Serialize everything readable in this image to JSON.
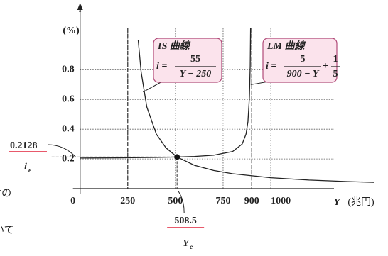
{
  "chart_data": {
    "type": "line",
    "xlabel": "Y",
    "xunit": "(兆円)",
    "ylabel": "i",
    "yunit": "(%)",
    "xlim": [
      -10,
      1540
    ],
    "ylim": [
      0,
      1.05
    ],
    "xticks": [
      0,
      250,
      500,
      750,
      900,
      1000
    ],
    "yticks": [
      0.2,
      0.4,
      0.6,
      0.8
    ],
    "grid": true,
    "asymptotes": [
      250,
      900
    ],
    "series": [
      {
        "name": "IS 曲線",
        "color": "#222222",
        "formula": {
          "lhs": "i =",
          "numerator": "55",
          "denominator": "Y − 250"
        },
        "x": [
          305,
          320,
          350,
          400,
          450,
          508.5,
          600,
          700,
          800,
          1000,
          1200,
          1400,
          1540
        ],
        "values": [
          1.0,
          0.786,
          0.55,
          0.367,
          0.275,
          0.2128,
          0.157,
          0.122,
          0.1,
          0.0733,
          0.0579,
          0.0478,
          0.0426
        ]
      },
      {
        "name": "LM 曲線",
        "color": "#222222",
        "formula": {
          "lhs": "i =",
          "numerator": "5",
          "denominator": "900 − Y",
          "plus": "+",
          "numerator2": "1",
          "denominator2": "5"
        },
        "x": [
          0,
          200,
          400,
          508.5,
          600,
          700,
          800,
          850,
          870,
          880,
          888,
          892,
          895
        ],
        "values": [
          0.2056,
          0.2071,
          0.21,
          0.2128,
          0.2167,
          0.225,
          0.25,
          0.3,
          0.367,
          0.45,
          0.617,
          0.825,
          1.2
        ]
      }
    ],
    "equilibrium": {
      "x": 508.5,
      "y": 0.2128,
      "x_name": "Y",
      "x_sub": "e",
      "y_name": "i",
      "y_sub": "e"
    },
    "annotations": [
      "Yの",
      "いて"
    ]
  }
}
